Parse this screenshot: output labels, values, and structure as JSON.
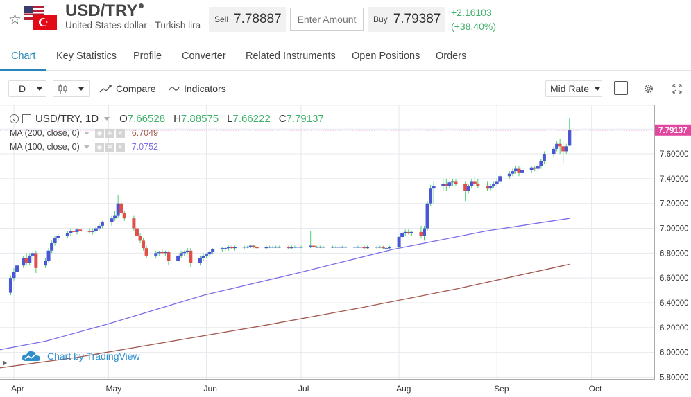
{
  "header": {
    "symbol": "USD/TRY",
    "name": "United States dollar - Turkish lira",
    "sell_label": "Sell",
    "sell_price": "7.78887",
    "amount_placeholder": "Enter Amount",
    "buy_label": "Buy",
    "buy_price": "7.79387",
    "change_abs": "+2.16103",
    "change_pct": "(+38.40%)"
  },
  "tabs": [
    "Chart",
    "Key Statistics",
    "Profile",
    "Converter",
    "Related Instruments",
    "Open Positions",
    "Orders"
  ],
  "toolbar": {
    "interval": "D",
    "compare": "Compare",
    "indicators": "Indicators",
    "price_mode": "Mid Rate"
  },
  "legend": {
    "title": "USD/TRY, 1D",
    "o_label": "O",
    "o": "7.66528",
    "h_label": "H",
    "h": "7.88575",
    "l_label": "L",
    "l": "7.66222",
    "c_label": "C",
    "c": "7.79137",
    "ma200_label": "MA (200, close, 0)",
    "ma200_value": "6.7049",
    "ma100_label": "MA (100, close, 0)",
    "ma100_value": "7.0752"
  },
  "watermark": "Chart by TradingView",
  "colors": {
    "accent": "#2584b8",
    "up": "#4a57d4",
    "down": "#e0504a",
    "positive": "#3fb16b",
    "ma100": "#7b6ee8",
    "ma200": "#a0584e",
    "last_price": "#e0479e"
  },
  "chart_data": {
    "type": "candlestick",
    "y_ticks": [
      "7.80000",
      "7.60000",
      "7.40000",
      "7.20000",
      "7.00000",
      "6.80000",
      "6.60000",
      "6.40000",
      "6.20000",
      "6.00000",
      "5.80000"
    ],
    "ylim": [
      5.78,
      7.98
    ],
    "x_ticks": [
      "Apr",
      "May",
      "Jun",
      "Jul",
      "Aug",
      "Sep",
      "Oct"
    ],
    "x_tick_days": [
      0,
      30,
      61,
      91,
      122,
      153,
      183
    ],
    "last_price_label": "7.79137",
    "last_price": 7.79137,
    "candles": [
      [
        -1,
        6.48,
        6.62,
        6.46,
        6.6
      ],
      [
        0,
        6.6,
        6.68,
        6.58,
        6.65
      ],
      [
        1,
        6.65,
        6.72,
        6.61,
        6.7
      ],
      [
        3,
        6.7,
        6.78,
        6.68,
        6.76
      ],
      [
        4,
        6.76,
        6.8,
        6.7,
        6.72
      ],
      [
        5,
        6.72,
        6.8,
        6.7,
        6.78
      ],
      [
        6,
        6.78,
        6.82,
        6.74,
        6.8
      ],
      [
        7,
        6.8,
        6.82,
        6.64,
        6.68
      ],
      [
        10,
        6.7,
        6.76,
        6.68,
        6.74
      ],
      [
        11,
        6.74,
        6.84,
        6.72,
        6.82
      ],
      [
        12,
        6.82,
        6.9,
        6.8,
        6.88
      ],
      [
        13,
        6.88,
        6.94,
        6.86,
        6.92
      ],
      [
        14,
        6.92,
        6.96,
        6.9,
        6.94
      ],
      [
        17,
        6.94,
        6.98,
        6.92,
        6.96
      ],
      [
        18,
        6.96,
        7.0,
        6.94,
        6.98
      ],
      [
        19,
        6.98,
        7.0,
        6.95,
        6.97
      ],
      [
        20,
        6.97,
        7.0,
        6.95,
        6.99
      ],
      [
        21,
        6.99,
        7.0,
        6.96,
        6.98
      ],
      [
        24,
        6.98,
        7.0,
        6.96,
        6.97
      ],
      [
        25,
        6.97,
        7.0,
        6.95,
        6.98
      ],
      [
        26,
        6.98,
        7.02,
        6.96,
        7.0
      ],
      [
        27,
        7.0,
        7.04,
        6.98,
        7.02
      ],
      [
        28,
        7.02,
        7.06,
        7.0,
        7.05
      ],
      [
        31,
        7.05,
        7.1,
        7.02,
        7.08
      ],
      [
        32,
        7.08,
        7.14,
        7.06,
        7.1
      ],
      [
        33,
        7.1,
        7.27,
        7.08,
        7.2
      ],
      [
        34,
        7.2,
        7.22,
        7.1,
        7.12
      ],
      [
        35,
        7.12,
        7.14,
        7.06,
        7.08
      ],
      [
        38,
        7.08,
        7.1,
        6.98,
        7.0
      ],
      [
        39,
        7.0,
        7.02,
        6.92,
        6.94
      ],
      [
        40,
        6.94,
        6.96,
        6.88,
        6.9
      ],
      [
        41,
        6.9,
        6.92,
        6.82,
        6.84
      ],
      [
        42,
        6.84,
        6.86,
        6.76,
        6.78
      ],
      [
        45,
        6.78,
        6.82,
        6.76,
        6.8
      ],
      [
        46,
        6.8,
        6.82,
        6.78,
        6.81
      ],
      [
        47,
        6.81,
        6.83,
        6.79,
        6.8
      ],
      [
        48,
        6.8,
        6.82,
        6.78,
        6.81
      ],
      [
        49,
        6.81,
        6.82,
        6.7,
        6.74
      ],
      [
        52,
        6.74,
        6.8,
        6.72,
        6.78
      ],
      [
        53,
        6.78,
        6.82,
        6.76,
        6.8
      ],
      [
        54,
        6.8,
        6.82,
        6.78,
        6.81
      ],
      [
        55,
        6.81,
        6.84,
        6.79,
        6.82
      ],
      [
        56,
        6.82,
        6.84,
        6.69,
        6.72
      ],
      [
        59,
        6.72,
        6.78,
        6.7,
        6.76
      ],
      [
        60,
        6.76,
        6.8,
        6.74,
        6.78
      ],
      [
        61,
        6.78,
        6.8,
        6.76,
        6.79
      ],
      [
        62,
        6.79,
        6.82,
        6.77,
        6.81
      ],
      [
        63,
        6.81,
        6.84,
        6.79,
        6.83
      ],
      [
        66,
        6.83,
        6.85,
        6.81,
        6.84
      ],
      [
        67,
        6.84,
        6.85,
        6.82,
        6.84
      ],
      [
        68,
        6.84,
        6.86,
        6.82,
        6.85
      ],
      [
        69,
        6.85,
        6.86,
        6.83,
        6.84
      ],
      [
        70,
        6.84,
        6.86,
        6.82,
        6.85
      ],
      [
        73,
        6.85,
        6.86,
        6.83,
        6.85
      ],
      [
        74,
        6.85,
        6.86,
        6.84,
        6.85
      ],
      [
        75,
        6.85,
        6.87,
        6.84,
        6.86
      ],
      [
        76,
        6.86,
        6.87,
        6.84,
        6.85
      ],
      [
        77,
        6.85,
        6.86,
        6.83,
        6.84
      ],
      [
        80,
        6.84,
        6.86,
        6.83,
        6.85
      ],
      [
        81,
        6.85,
        6.86,
        6.84,
        6.85
      ],
      [
        82,
        6.85,
        6.86,
        6.84,
        6.85
      ],
      [
        83,
        6.85,
        6.86,
        6.84,
        6.85
      ],
      [
        84,
        6.85,
        6.86,
        6.84,
        6.85
      ],
      [
        87,
        6.85,
        6.86,
        6.83,
        6.84
      ],
      [
        88,
        6.84,
        6.86,
        6.83,
        6.85
      ],
      [
        89,
        6.85,
        6.86,
        6.84,
        6.85
      ],
      [
        90,
        6.85,
        6.86,
        6.84,
        6.85
      ],
      [
        91,
        6.85,
        6.86,
        6.84,
        6.85
      ],
      [
        94,
        6.85,
        6.98,
        6.84,
        6.86
      ],
      [
        95,
        6.86,
        6.87,
        6.84,
        6.85
      ],
      [
        96,
        6.85,
        6.86,
        6.84,
        6.85
      ],
      [
        97,
        6.85,
        6.86,
        6.84,
        6.85
      ],
      [
        98,
        6.85,
        6.86,
        6.84,
        6.85
      ],
      [
        101,
        6.85,
        6.86,
        6.84,
        6.85
      ],
      [
        102,
        6.85,
        6.86,
        6.84,
        6.85
      ],
      [
        103,
        6.85,
        6.86,
        6.84,
        6.85
      ],
      [
        104,
        6.85,
        6.86,
        6.84,
        6.85
      ],
      [
        105,
        6.85,
        6.86,
        6.84,
        6.85
      ],
      [
        108,
        6.85,
        6.86,
        6.84,
        6.85
      ],
      [
        109,
        6.85,
        6.86,
        6.84,
        6.85
      ],
      [
        110,
        6.85,
        6.86,
        6.84,
        6.85
      ],
      [
        111,
        6.85,
        6.86,
        6.83,
        6.84
      ],
      [
        112,
        6.84,
        6.86,
        6.83,
        6.85
      ],
      [
        115,
        6.85,
        6.86,
        6.83,
        6.85
      ],
      [
        116,
        6.85,
        6.86,
        6.84,
        6.85
      ],
      [
        117,
        6.85,
        6.86,
        6.83,
        6.84
      ],
      [
        118,
        6.84,
        6.85,
        6.83,
        6.84
      ],
      [
        119,
        6.84,
        6.86,
        6.83,
        6.85
      ],
      [
        122,
        6.85,
        6.94,
        6.84,
        6.93
      ],
      [
        123,
        6.93,
        6.98,
        6.91,
        6.96
      ],
      [
        124,
        6.96,
        6.99,
        6.94,
        6.97
      ],
      [
        125,
        6.97,
        6.99,
        6.95,
        6.96
      ],
      [
        126,
        6.96,
        6.98,
        6.94,
        6.97
      ],
      [
        129,
        6.97,
        7.02,
        6.92,
        6.94
      ],
      [
        130,
        6.94,
        7.02,
        6.9,
        7.0
      ],
      [
        131,
        7.0,
        7.22,
        6.98,
        7.2
      ],
      [
        132,
        7.2,
        7.35,
        7.18,
        7.32
      ],
      [
        133,
        7.32,
        7.38,
        7.2,
        7.34
      ],
      [
        136,
        7.34,
        7.4,
        7.3,
        7.36
      ],
      [
        137,
        7.36,
        7.4,
        7.3,
        7.34
      ],
      [
        138,
        7.34,
        7.38,
        7.32,
        7.37
      ],
      [
        139,
        7.37,
        7.4,
        7.34,
        7.38
      ],
      [
        140,
        7.38,
        7.4,
        7.34,
        7.36
      ],
      [
        143,
        7.36,
        7.38,
        7.22,
        7.3
      ],
      [
        144,
        7.3,
        7.36,
        7.28,
        7.34
      ],
      [
        145,
        7.34,
        7.4,
        7.32,
        7.38
      ],
      [
        146,
        7.38,
        7.42,
        7.34,
        7.36
      ],
      [
        147,
        7.36,
        7.4,
        7.32,
        7.34
      ],
      [
        150,
        7.34,
        7.38,
        7.3,
        7.32
      ],
      [
        151,
        7.32,
        7.36,
        7.3,
        7.34
      ],
      [
        152,
        7.34,
        7.38,
        7.32,
        7.36
      ],
      [
        153,
        7.36,
        7.4,
        7.34,
        7.38
      ],
      [
        154,
        7.38,
        7.44,
        7.36,
        7.42
      ],
      [
        157,
        7.42,
        7.46,
        7.4,
        7.44
      ],
      [
        158,
        7.44,
        7.48,
        7.42,
        7.46
      ],
      [
        159,
        7.46,
        7.5,
        7.44,
        7.48
      ],
      [
        160,
        7.48,
        7.5,
        7.42,
        7.45
      ],
      [
        161,
        7.45,
        7.48,
        7.44,
        7.47
      ],
      [
        164,
        7.47,
        7.5,
        7.45,
        7.49
      ],
      [
        165,
        7.49,
        7.5,
        7.46,
        7.48
      ],
      [
        166,
        7.48,
        7.52,
        7.46,
        7.5
      ],
      [
        167,
        7.5,
        7.56,
        7.48,
        7.54
      ],
      [
        168,
        7.54,
        7.62,
        7.52,
        7.6
      ],
      [
        171,
        7.6,
        7.66,
        7.58,
        7.64
      ],
      [
        172,
        7.64,
        7.7,
        7.62,
        7.68
      ],
      [
        173,
        7.68,
        7.72,
        7.6,
        7.66
      ],
      [
        174,
        7.66,
        7.7,
        7.52,
        7.62
      ],
      [
        175,
        7.62,
        7.68,
        7.6,
        7.66
      ],
      [
        176,
        7.66528,
        7.88575,
        7.66222,
        7.79137
      ]
    ],
    "ma100": [
      [
        -9,
        6.0
      ],
      [
        10,
        6.09
      ],
      [
        30,
        6.23
      ],
      [
        60,
        6.46
      ],
      [
        90,
        6.64
      ],
      [
        120,
        6.83
      ],
      [
        150,
        6.98
      ],
      [
        176,
        7.08
      ]
    ],
    "ma200": [
      [
        -9,
        5.86
      ],
      [
        20,
        5.96
      ],
      [
        50,
        6.09
      ],
      [
        80,
        6.22
      ],
      [
        110,
        6.36
      ],
      [
        140,
        6.51
      ],
      [
        176,
        6.71
      ]
    ]
  }
}
